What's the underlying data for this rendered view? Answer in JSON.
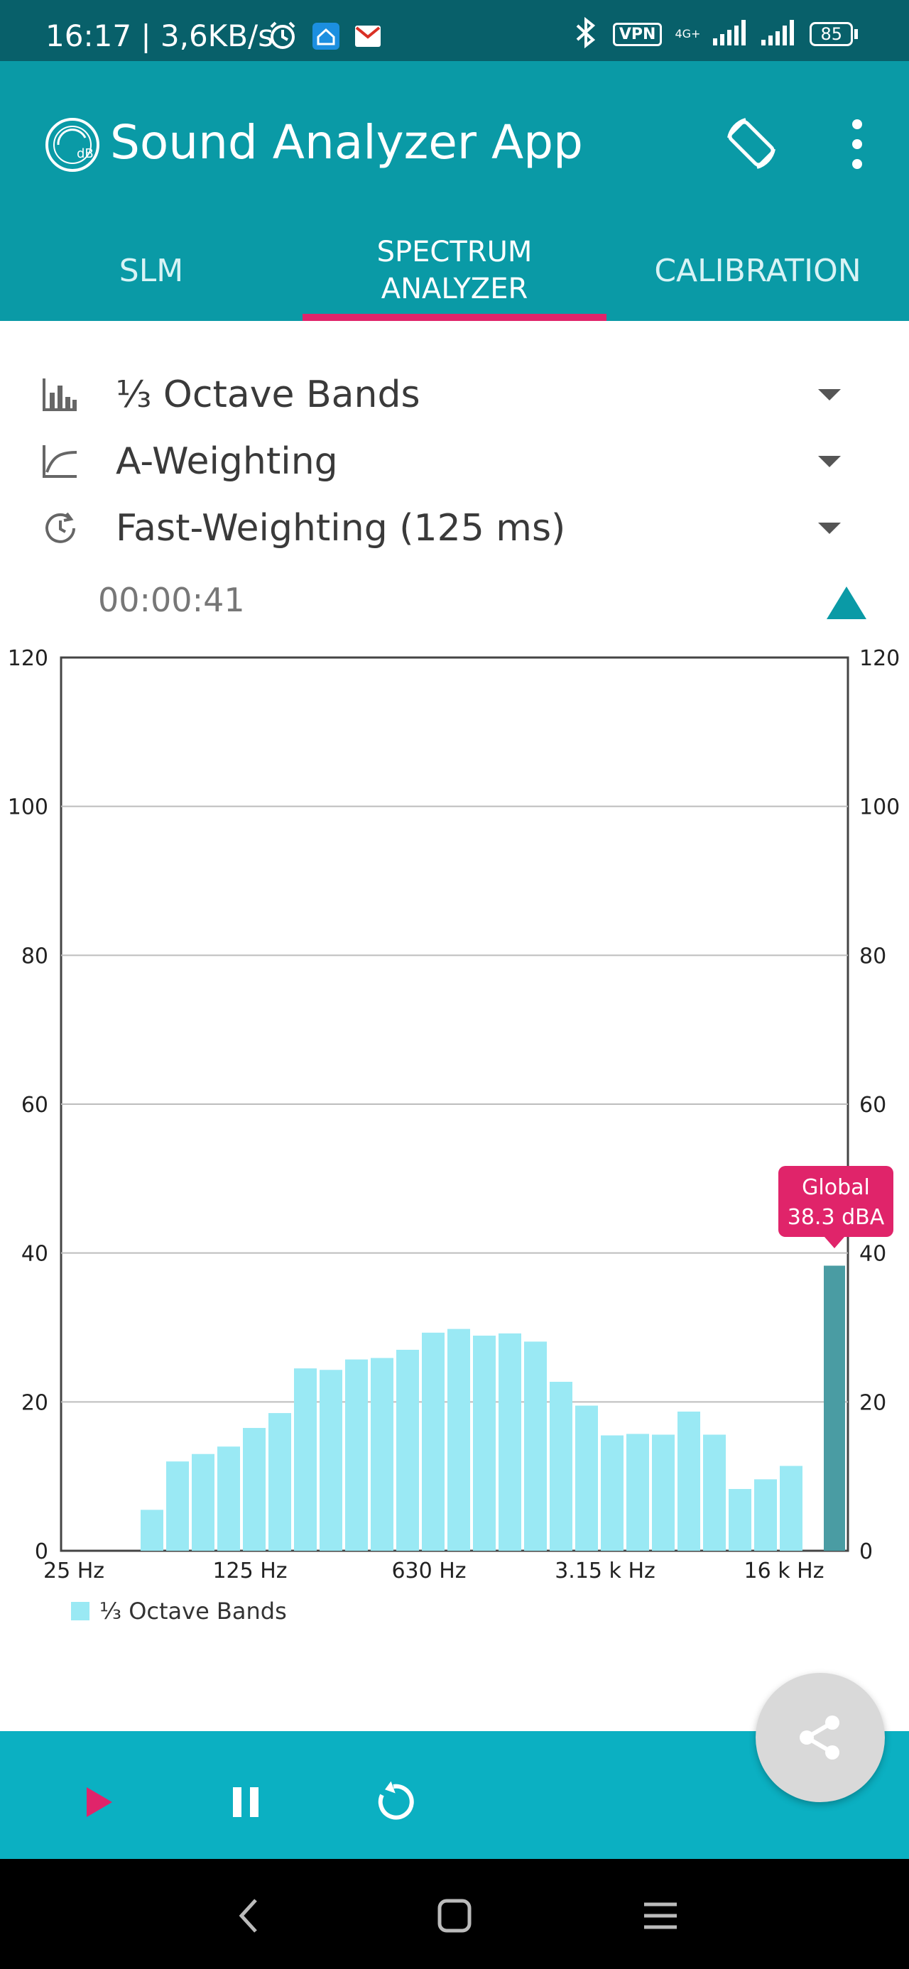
{
  "status_bar": {
    "time_speed": "16:17 | 3,6KB/s",
    "vpn_label": "VPN",
    "network_label": "4G+",
    "battery": "85"
  },
  "app_bar": {
    "title": "Sound Analyzer App"
  },
  "tabs": [
    {
      "label": "SLM"
    },
    {
      "label": "SPECTRUM\nANALYZER",
      "line1": "SPECTRUM",
      "line2": "ANALYZER"
    },
    {
      "label": "CALIBRATION"
    }
  ],
  "settings": {
    "bands": "⅓ Octave Bands",
    "weighting": "A-Weighting",
    "time_weighting": "Fast-Weighting (125 ms)"
  },
  "timer": "00:00:41",
  "legend_label": "⅓ Octave Bands",
  "global_badge": {
    "line1": "Global",
    "line2": "38.3 dBA"
  },
  "colors": {
    "appbar": "#0a9aa6",
    "statusbar": "#08606a",
    "accent": "#e0246a",
    "bar": "#9ae9f4",
    "global_bar": "#4a9ca3",
    "bottombar": "#0bb0c2"
  },
  "chart_data": {
    "type": "bar",
    "y_ticks": [
      0,
      20,
      40,
      60,
      80,
      100,
      120
    ],
    "ylim": [
      0,
      120
    ],
    "x_tick_labels": [
      "25 Hz",
      "125 Hz",
      "630 Hz",
      "3.15 k Hz",
      "16 k Hz"
    ],
    "series": [
      {
        "name": "⅓ Octave Bands",
        "values": [
          0,
          0,
          0,
          5.5,
          12,
          13,
          14,
          16.5,
          18.5,
          24.5,
          24.3,
          25.7,
          25.9,
          27,
          29.3,
          29.8,
          28.9,
          29.2,
          28.1,
          22.7,
          19.5,
          15.5,
          15.7,
          15.6,
          18.7,
          15.6,
          8.3,
          9.6,
          11.4
        ]
      }
    ],
    "global": {
      "label": "Global",
      "value": 38.3,
      "unit": "dBA"
    }
  }
}
